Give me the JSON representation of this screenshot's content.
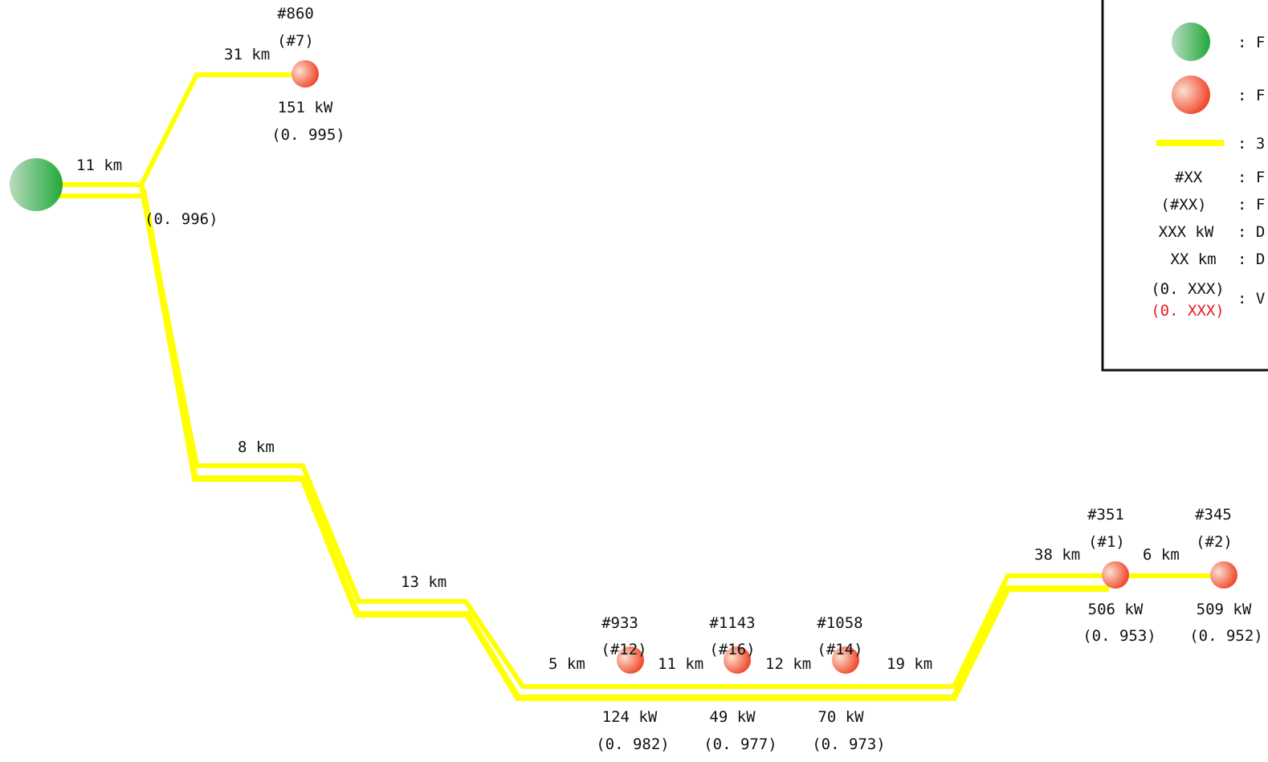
{
  "source": {
    "name": "source-node",
    "color_start": "#b9dbbf",
    "color_end": "#22a83a"
  },
  "line_color": "#ffff00",
  "node_color": {
    "light": "#fbe0d0",
    "dark": "#ee3b1e"
  },
  "segments": [
    {
      "id": "seg-src-branch",
      "label": "11 km"
    },
    {
      "id": "seg-branch-860",
      "label": "31 km"
    },
    {
      "id": "seg-8km",
      "label": "8 km"
    },
    {
      "id": "seg-13km",
      "label": "13 km"
    },
    {
      "id": "seg-5km",
      "label": "5 km"
    },
    {
      "id": "seg-11km",
      "label": "11 km"
    },
    {
      "id": "seg-12km",
      "label": "12 km"
    },
    {
      "id": "seg-19km",
      "label": "19 km"
    },
    {
      "id": "seg-38km",
      "label": "38 km"
    },
    {
      "id": "seg-6km",
      "label": "6 km"
    }
  ],
  "branch_point": {
    "voltage": "(0. 996)"
  },
  "nodes": [
    {
      "id": "860",
      "label": "#860",
      "sub": "(#7)",
      "power": "151 kW",
      "voltage": "(0. 995)"
    },
    {
      "id": "933",
      "label": "#933",
      "sub": "(#12)",
      "power": "124 kW",
      "voltage": "(0. 982)"
    },
    {
      "id": "1143",
      "label": "#1143",
      "sub": "(#16)",
      "power": "49 kW",
      "voltage": "(0. 977)"
    },
    {
      "id": "1058",
      "label": "#1058",
      "sub": "(#14)",
      "power": "70 kW",
      "voltage": "(0. 973)"
    },
    {
      "id": "351",
      "label": "#351",
      "sub": "(#1)",
      "power": "506 kW",
      "voltage": "(0. 953)"
    },
    {
      "id": "345",
      "label": "#345",
      "sub": "(#2)",
      "power": "509 kW",
      "voltage": "(0. 952)"
    }
  ],
  "legend": {
    "rows": [
      {
        "key": "",
        "text": ": F"
      },
      {
        "key": "",
        "text": ": F"
      },
      {
        "key": "",
        "text": ": 3"
      },
      {
        "key": "#XX",
        "text": ": F"
      },
      {
        "key": "(#XX)",
        "text": ": F"
      },
      {
        "key": "XXX kW",
        "text": ": D"
      },
      {
        "key": "XX km",
        "text": ": D"
      },
      {
        "key": "(0. XXX)",
        "key2": "(0. XXX)",
        "text": ": V"
      }
    ]
  }
}
